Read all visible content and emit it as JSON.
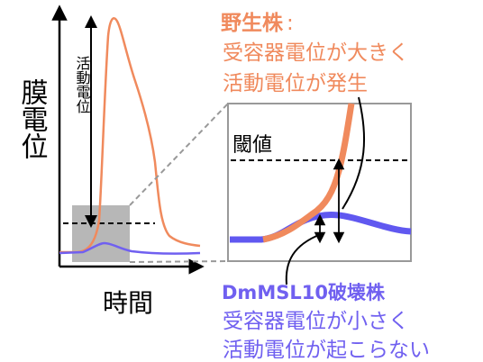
{
  "left_plot": {
    "y_axis_label": "膜電位",
    "x_axis_label": "時間",
    "ap_label": "活動電位"
  },
  "inset": {
    "threshold_label": "閾値"
  },
  "wildtype": {
    "title": "野生株",
    "colon": ":",
    "line1": "受容器電位が大きく",
    "line2": "活動電位が発生",
    "color": "#f08a5d"
  },
  "mutant": {
    "title": "DmMSL10破壊株",
    "colon": ":",
    "line1": "受容器電位が小さく",
    "line2": "活動電位が起こらない",
    "color": "#7060f0"
  }
}
